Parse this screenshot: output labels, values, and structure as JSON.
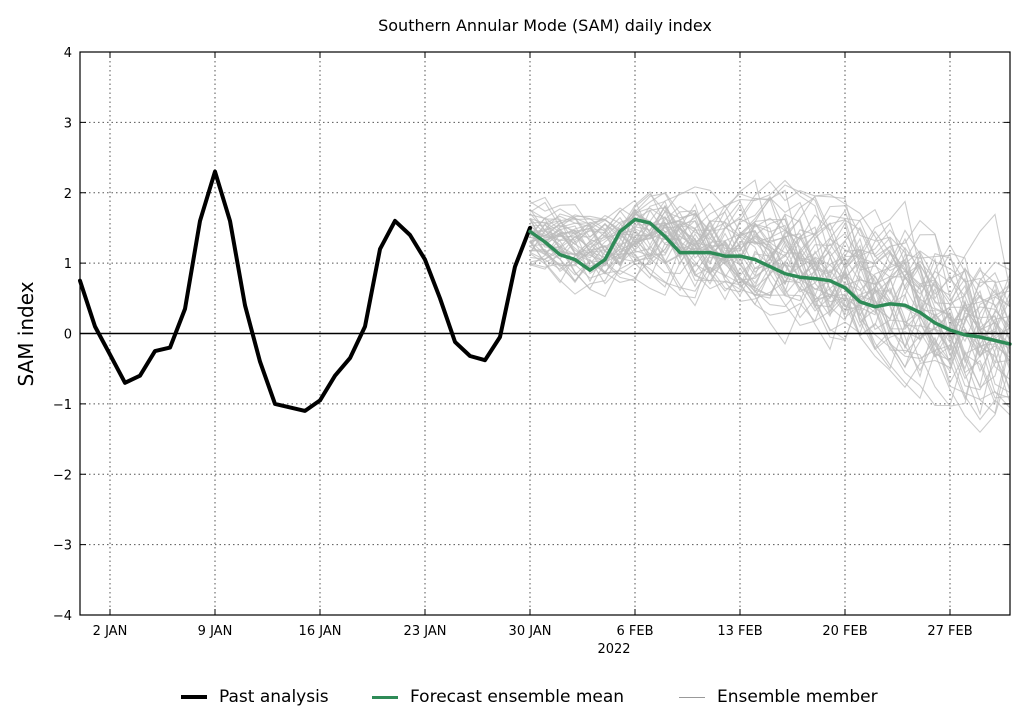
{
  "chart_data": {
    "type": "line",
    "title": "Southern Annular Mode (SAM) daily index",
    "ylabel": "SAM index",
    "xlabel": "",
    "year_label": "2022",
    "ylim": [
      -4,
      4
    ],
    "xlim": [
      0,
      62
    ],
    "grid": true,
    "legend_position": "bottom",
    "yticks": [
      -4,
      -3,
      -2,
      -1,
      0,
      1,
      2,
      3,
      4
    ],
    "ytick_labels": [
      "−4",
      "−3",
      "−2",
      "−1",
      "0",
      "1",
      "2",
      "3",
      "4"
    ],
    "xticks": [
      {
        "day": 2,
        "label": "2 JAN"
      },
      {
        "day": 9,
        "label": "9 JAN"
      },
      {
        "day": 16,
        "label": "16 JAN"
      },
      {
        "day": 23,
        "label": "23 JAN"
      },
      {
        "day": 30,
        "label": "30 JAN"
      },
      {
        "day": 37,
        "label": "6 FEB"
      },
      {
        "day": 44,
        "label": "13 FEB"
      },
      {
        "day": 51,
        "label": "20 FEB"
      },
      {
        "day": 58,
        "label": "27 FEB"
      }
    ],
    "colors": {
      "past": "#000000",
      "mean": "#2e8b57",
      "member": "#bbbbbb",
      "zero_line": "#000000",
      "grid": "#555555"
    },
    "series": [
      {
        "name": "Past analysis",
        "x": [
          0,
          1,
          2,
          3,
          4,
          5,
          6,
          7,
          8,
          9,
          10,
          11,
          12,
          13,
          14,
          15,
          16,
          17,
          18,
          19,
          20,
          21,
          22,
          23,
          24,
          25,
          26,
          27,
          28,
          29,
          30
        ],
        "values": [
          0.75,
          0.1,
          -0.3,
          -0.7,
          -0.6,
          -0.25,
          -0.2,
          0.35,
          1.6,
          2.3,
          1.6,
          0.4,
          -0.4,
          -1.0,
          -1.05,
          -1.1,
          -0.95,
          -0.6,
          -0.35,
          0.1,
          1.2,
          1.6,
          1.4,
          1.05,
          0.5,
          -0.12,
          -0.32,
          -0.38,
          -0.05,
          0.95,
          1.5
        ]
      },
      {
        "name": "Forecast ensemble mean",
        "x": [
          30,
          31,
          32,
          33,
          34,
          35,
          36,
          37,
          38,
          39,
          40,
          41,
          42,
          43,
          44,
          45,
          46,
          47,
          48,
          49,
          50,
          51,
          52,
          53,
          54,
          55,
          56,
          57,
          58,
          59,
          60,
          61,
          62
        ],
        "values": [
          1.45,
          1.3,
          1.12,
          1.05,
          0.9,
          1.05,
          1.45,
          1.62,
          1.57,
          1.38,
          1.15,
          1.15,
          1.15,
          1.1,
          1.1,
          1.05,
          0.95,
          0.85,
          0.8,
          0.78,
          0.75,
          0.65,
          0.45,
          0.38,
          0.42,
          0.4,
          0.3,
          0.15,
          0.05,
          -0.02,
          -0.05,
          -0.1,
          -0.15
        ]
      }
    ],
    "ensemble": {
      "name": "Ensemble member",
      "member_count": 50,
      "start_day": 30,
      "end_day": 62
    }
  },
  "legend": {
    "past": "Past analysis",
    "mean": "Forecast ensemble mean",
    "member": "Ensemble member"
  }
}
